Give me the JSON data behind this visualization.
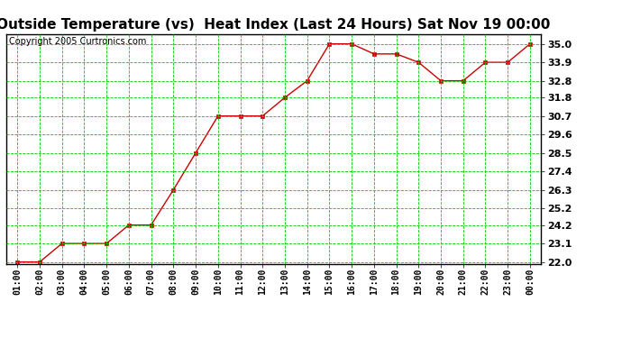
{
  "title": "Outside Temperature (vs)  Heat Index (Last 24 Hours) Sat Nov 19 00:00",
  "copyright": "Copyright 2005 Curtronics.com",
  "x_labels": [
    "01:00",
    "02:00",
    "03:00",
    "04:00",
    "05:00",
    "06:00",
    "07:00",
    "08:00",
    "09:00",
    "10:00",
    "11:00",
    "12:00",
    "13:00",
    "14:00",
    "15:00",
    "16:00",
    "17:00",
    "18:00",
    "19:00",
    "20:00",
    "21:00",
    "22:00",
    "23:00",
    "00:00"
  ],
  "y_values": [
    22.0,
    22.0,
    23.1,
    23.1,
    23.1,
    24.2,
    24.2,
    26.3,
    28.5,
    30.7,
    30.7,
    30.7,
    31.8,
    32.8,
    35.0,
    35.0,
    34.4,
    34.4,
    33.9,
    32.8,
    32.8,
    33.9,
    33.9,
    35.0
  ],
  "ylim_min": 21.9,
  "ylim_max": 35.6,
  "yticks": [
    22.0,
    23.1,
    24.2,
    25.2,
    26.3,
    27.4,
    28.5,
    29.6,
    30.7,
    31.8,
    32.8,
    33.9,
    35.0
  ],
  "line_color": "#cc0000",
  "marker_color": "#cc0000",
  "background_color": "#ffffff",
  "grid_color": "#00cc00",
  "title_fontsize": 11,
  "copyright_fontsize": 7,
  "tick_fontsize": 7,
  "ytick_fontsize": 8
}
